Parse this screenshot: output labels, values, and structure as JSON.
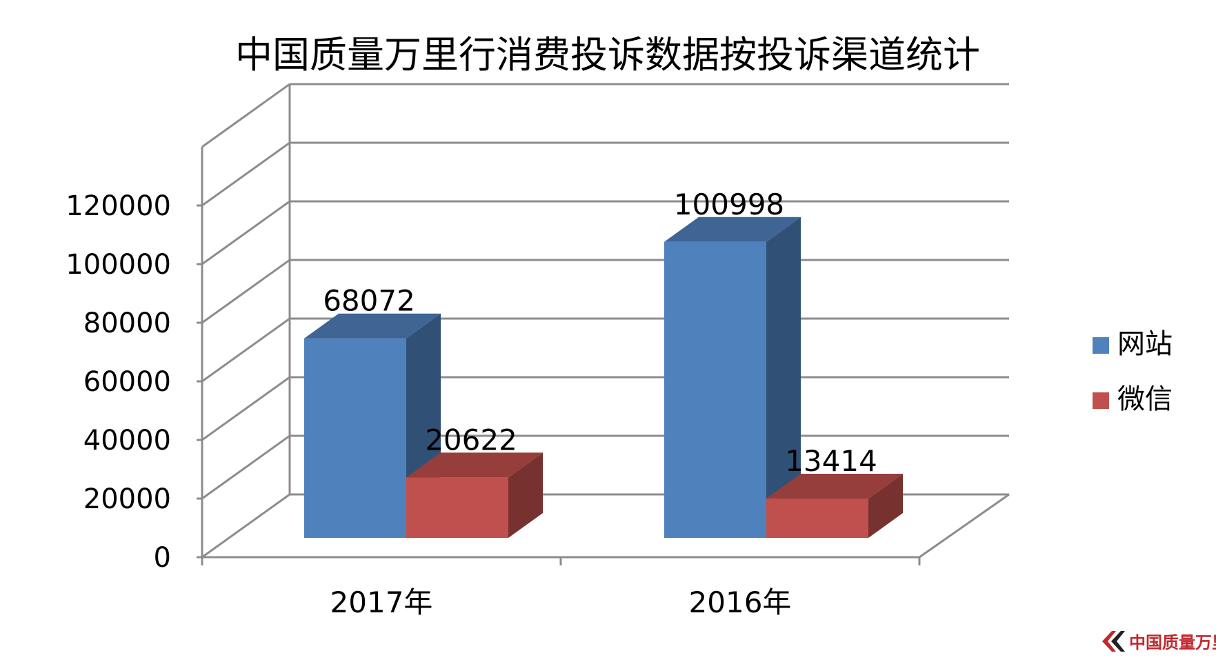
{
  "chart_data": {
    "type": "bar",
    "title": "中国质量万里行消费投诉数据按投诉渠道统计",
    "categories": [
      "2017年",
      "2016年"
    ],
    "series": [
      {
        "name": "网站",
        "values": [
          68072,
          100998
        ],
        "color": "#4f81bd"
      },
      {
        "name": "微信",
        "values": [
          20622,
          13414
        ],
        "color": "#c0504d"
      }
    ],
    "data_labels": [
      [
        "68072",
        "100998"
      ],
      [
        "20622",
        "13414"
      ]
    ],
    "y_ticks": [
      "0",
      "20000",
      "40000",
      "60000",
      "80000",
      "100000",
      "120000"
    ],
    "ylim": [
      0,
      140000
    ],
    "grid": true,
    "legend_position": "right",
    "three_d": true
  },
  "watermark": {
    "text": "中国质量万里行",
    "accent_color": "#c0282d"
  }
}
